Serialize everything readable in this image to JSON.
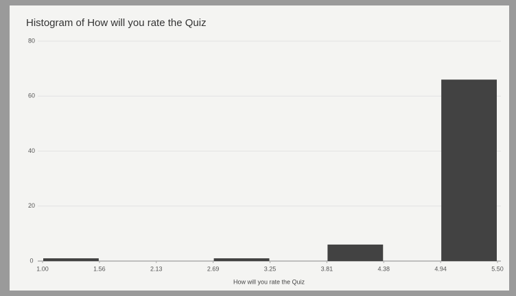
{
  "chart_data": {
    "type": "histogram",
    "title": "Histogram of How will you rate the Quiz",
    "x_label": "How will you rate the Quiz",
    "bins": [
      1,
      1.5625,
      2.125,
      2.6875,
      3.25,
      3.8125,
      4.375,
      4.9375,
      5.5
    ],
    "values": [
      1,
      0,
      0,
      1,
      0,
      6,
      0,
      66
    ],
    "color": "#424242",
    "xlim": [
      1,
      5.5
    ],
    "xticks": [
      {
        "value": 1,
        "label": "1.00"
      },
      {
        "value": 1.5625,
        "label": "1.56"
      },
      {
        "value": 2.125,
        "label": "2.13"
      },
      {
        "value": 2.6875,
        "label": "2.69"
      },
      {
        "value": 3.25,
        "label": "3.25"
      },
      {
        "value": 3.8125,
        "label": "3.81"
      },
      {
        "value": 4.375,
        "label": "4.38"
      },
      {
        "value": 4.9375,
        "label": "4.94"
      },
      {
        "value": 5.5,
        "label": "5.50"
      }
    ],
    "ylim": [
      0,
      80
    ],
    "yticks": [
      0,
      20,
      40,
      60,
      80
    ],
    "grid": true
  }
}
